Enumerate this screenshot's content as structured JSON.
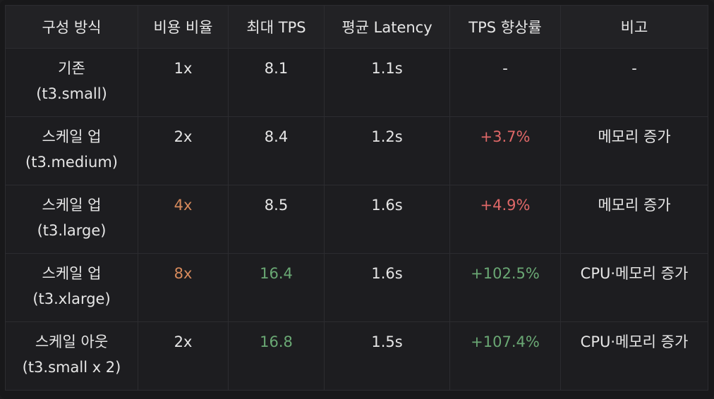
{
  "table": {
    "headers": [
      "구성 방식",
      "비용 비율",
      "최대 TPS",
      "평균 Latency",
      "TPS 향상률",
      "비고"
    ],
    "rows": [
      {
        "config": [
          "기존",
          "(t3.small)"
        ],
        "cost": "1x",
        "tps": "8.1",
        "latency": "1.1s",
        "gain": "-",
        "note": "-"
      },
      {
        "config": [
          "스케일 업",
          "(t3.medium)"
        ],
        "cost": "2x",
        "tps": "8.4",
        "latency": "1.2s",
        "gain": "+3.7%",
        "note": "메모리 증가"
      },
      {
        "config": [
          "스케일 업",
          "(t3.large)"
        ],
        "cost": "4x",
        "tps": "8.5",
        "latency": "1.6s",
        "gain": "+4.9%",
        "note": "메모리 증가"
      },
      {
        "config": [
          "스케일 업",
          "(t3.xlarge)"
        ],
        "cost": "8x",
        "tps": "16.4",
        "latency": "1.6s",
        "gain": "+102.5%",
        "note": "CPU·메모리 증가"
      },
      {
        "config": [
          "스케일 아웃",
          "(t3.small x 2)"
        ],
        "cost": "2x",
        "tps": "16.8",
        "latency": "1.5s",
        "gain": "+107.4%",
        "note": "CPU·메모리 증가"
      }
    ]
  },
  "colors": {
    "cost_highlight": "#d68a5c",
    "tps_highlight": "#6aa874",
    "gain_negative": "#e06868",
    "gain_positive": "#6aa874"
  }
}
